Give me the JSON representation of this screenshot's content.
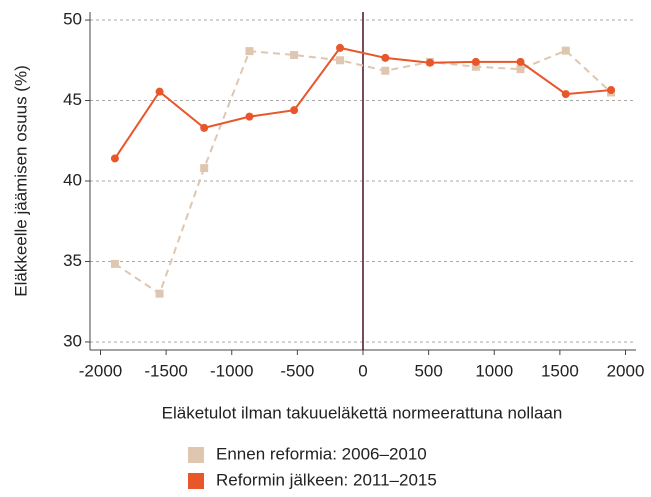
{
  "chart_data": {
    "type": "line",
    "x_label": "Eläketulot ilman takuueläkettä normeerattuna nollaan",
    "y_label": "Eläkkeelle jäämisen osuus (%)",
    "x": [
      -1890,
      -1550,
      -1210,
      -865,
      -525,
      -175,
      170,
      510,
      860,
      1200,
      1545,
      1890
    ],
    "series": [
      {
        "name": "Ennen reformia: 2006–2010",
        "color": "#dfc6b0",
        "dashed": true,
        "values": [
          34.85,
          33.0,
          40.8,
          48.07,
          47.83,
          47.5,
          46.85,
          47.4,
          47.1,
          46.95,
          48.1,
          45.5
        ]
      },
      {
        "name": "Reformin jälkeen: 2011–2015",
        "color": "#e8562a",
        "dashed": false,
        "values": [
          41.4,
          45.55,
          43.3,
          44.0,
          44.4,
          48.27,
          47.65,
          47.35,
          47.4,
          47.4,
          45.4,
          45.65
        ]
      }
    ],
    "xlim": [
      -2080,
      2080
    ],
    "ylim": [
      29.5,
      50.5
    ],
    "xticks": [
      -2000,
      -1500,
      -1000,
      -500,
      0,
      500,
      1000,
      1500,
      2000
    ],
    "yticks": [
      30,
      35,
      40,
      45,
      50
    ],
    "grid": true,
    "vline": 0,
    "vline_color": "#4a1020",
    "legend": "bottom"
  }
}
